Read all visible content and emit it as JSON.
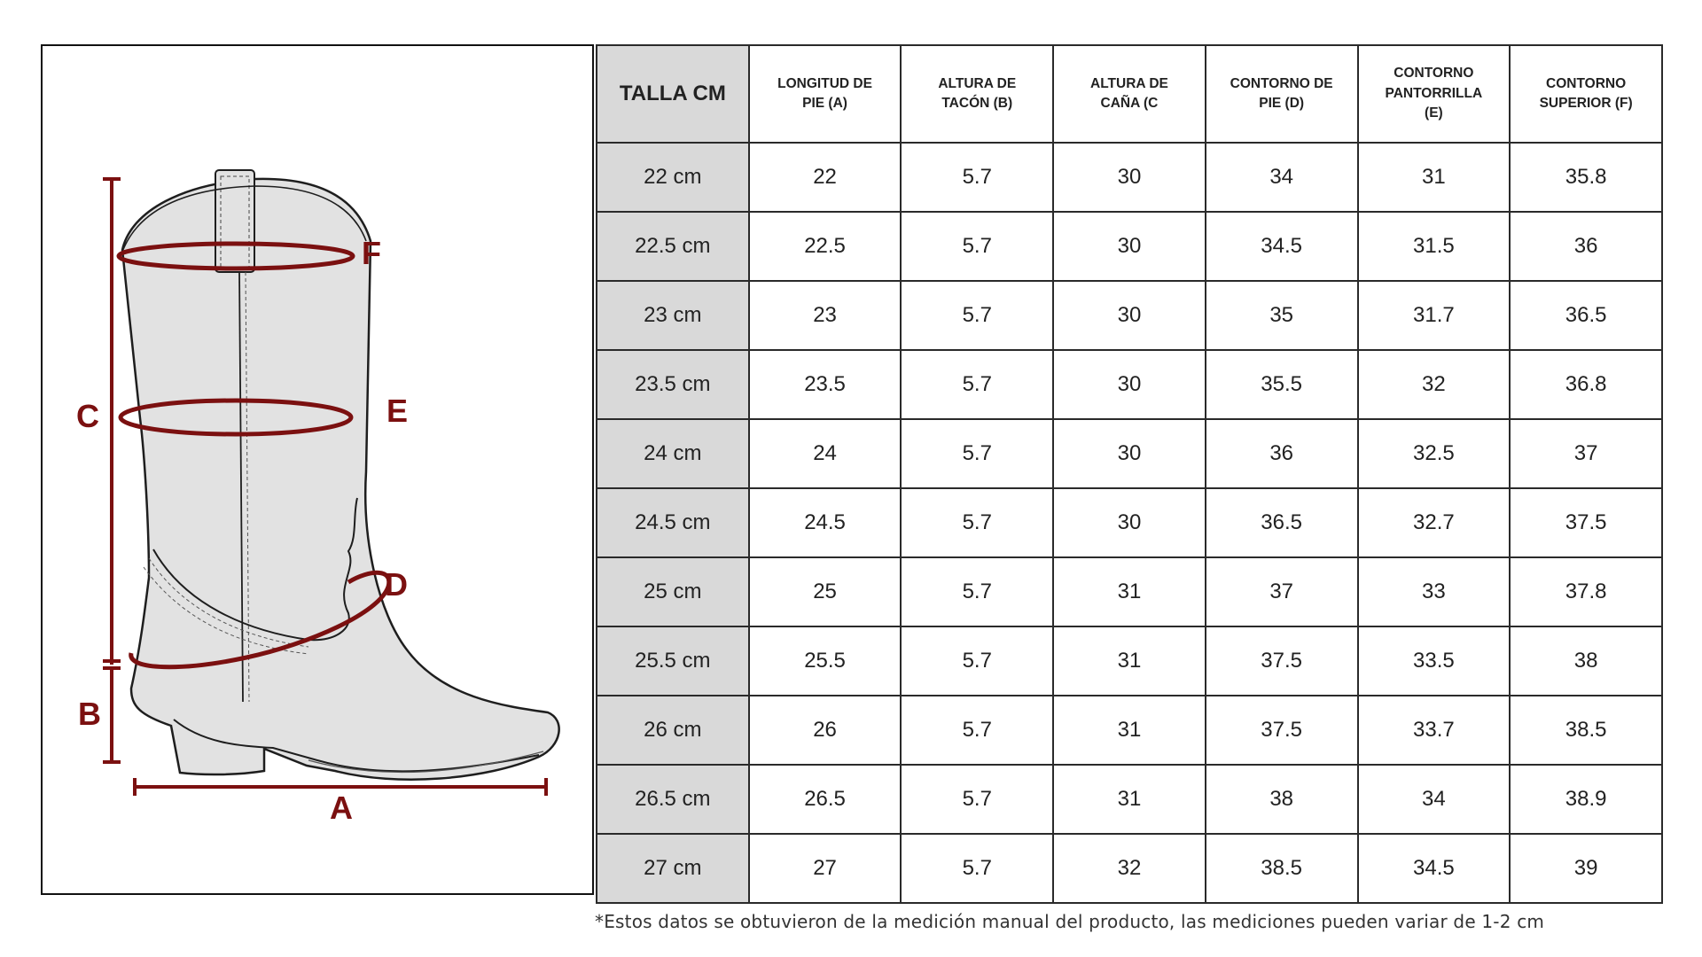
{
  "colors": {
    "accent": "#7b1010",
    "boot_fill": "#e2e2e2",
    "size_column_bg": "#d9d9d9"
  },
  "figure": {
    "labels": {
      "a": "A",
      "b": "B",
      "c": "C",
      "d": "D",
      "e": "E",
      "f": "F"
    }
  },
  "table": {
    "headers": {
      "size": "TALLA CM",
      "a_1": "LONGITUD DE",
      "a_2": "PIE (A)",
      "b_1": "ALTURA DE",
      "b_2": "TACÓN (B)",
      "c_1": "ALTURA DE",
      "c_2": "CAÑA (C",
      "d_1": "CONTORNO DE",
      "d_2": "PIE (D)",
      "e_1": "CONTORNO",
      "e_2": "PANTORRILLA",
      "e_3": "(E)",
      "f_1": "CONTORNO",
      "f_2": "SUPERIOR (F)"
    },
    "rows": [
      [
        "22 cm",
        "22",
        "5.7",
        "30",
        "34",
        "31",
        "35.8"
      ],
      [
        "22.5 cm",
        "22.5",
        "5.7",
        "30",
        "34.5",
        "31.5",
        "36"
      ],
      [
        "23 cm",
        "23",
        "5.7",
        "30",
        "35",
        "31.7",
        "36.5"
      ],
      [
        "23.5 cm",
        "23.5",
        "5.7",
        "30",
        "35.5",
        "32",
        "36.8"
      ],
      [
        "24 cm",
        "24",
        "5.7",
        "30",
        "36",
        "32.5",
        "37"
      ],
      [
        "24.5 cm",
        "24.5",
        "5.7",
        "30",
        "36.5",
        "32.7",
        "37.5"
      ],
      [
        "25 cm",
        "25",
        "5.7",
        "31",
        "37",
        "33",
        "37.8"
      ],
      [
        "25.5 cm",
        "25.5",
        "5.7",
        "31",
        "37.5",
        "33.5",
        "38"
      ],
      [
        "26 cm",
        "26",
        "5.7",
        "31",
        "37.5",
        "33.7",
        "38.5"
      ],
      [
        "26.5 cm",
        "26.5",
        "5.7",
        "31",
        "38",
        "34",
        "38.9"
      ],
      [
        "27 cm",
        "27",
        "5.7",
        "32",
        "38.5",
        "34.5",
        "39"
      ]
    ]
  },
  "footnote": "*Estos datos se obtuvieron de la medición manual del producto, las mediciones pueden variar de 1-2 cm"
}
